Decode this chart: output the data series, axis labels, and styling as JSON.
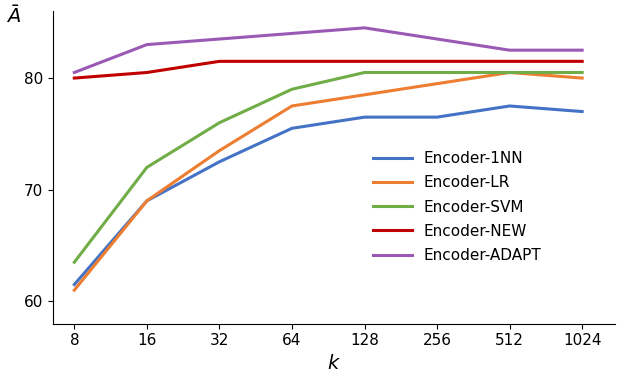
{
  "x": [
    8,
    16,
    32,
    64,
    128,
    256,
    512,
    1024
  ],
  "series": {
    "Encoder-1NN": [
      61.5,
      69.0,
      72.5,
      75.5,
      76.5,
      76.5,
      77.5,
      77.0
    ],
    "Encoder-LR": [
      61.0,
      69.0,
      73.5,
      77.5,
      78.5,
      79.5,
      80.5,
      80.0
    ],
    "Encoder-SVM": [
      63.5,
      72.0,
      76.0,
      79.0,
      80.5,
      80.5,
      80.5,
      80.5
    ],
    "Encoder-NEW": [
      80.0,
      80.5,
      81.5,
      81.5,
      81.5,
      81.5,
      81.5,
      81.5
    ],
    "Encoder-ADAPT": [
      80.5,
      83.0,
      83.5,
      84.0,
      84.5,
      83.5,
      82.5,
      82.5
    ]
  },
  "colors": {
    "Encoder-1NN": "#4472C4",
    "Encoder-LR": "#ED7D31",
    "Encoder-SVM": "#70AD47",
    "Encoder-NEW": "#C00000",
    "Encoder-ADAPT": "#9B59B6"
  },
  "ylabel": "$\\bar{A}$",
  "xlabel": "$k$",
  "ylim": [
    58,
    86
  ],
  "yticks": [
    60,
    70,
    80
  ],
  "xticks": [
    8,
    16,
    32,
    64,
    128,
    256,
    512,
    1024
  ],
  "linewidth": 2.2
}
